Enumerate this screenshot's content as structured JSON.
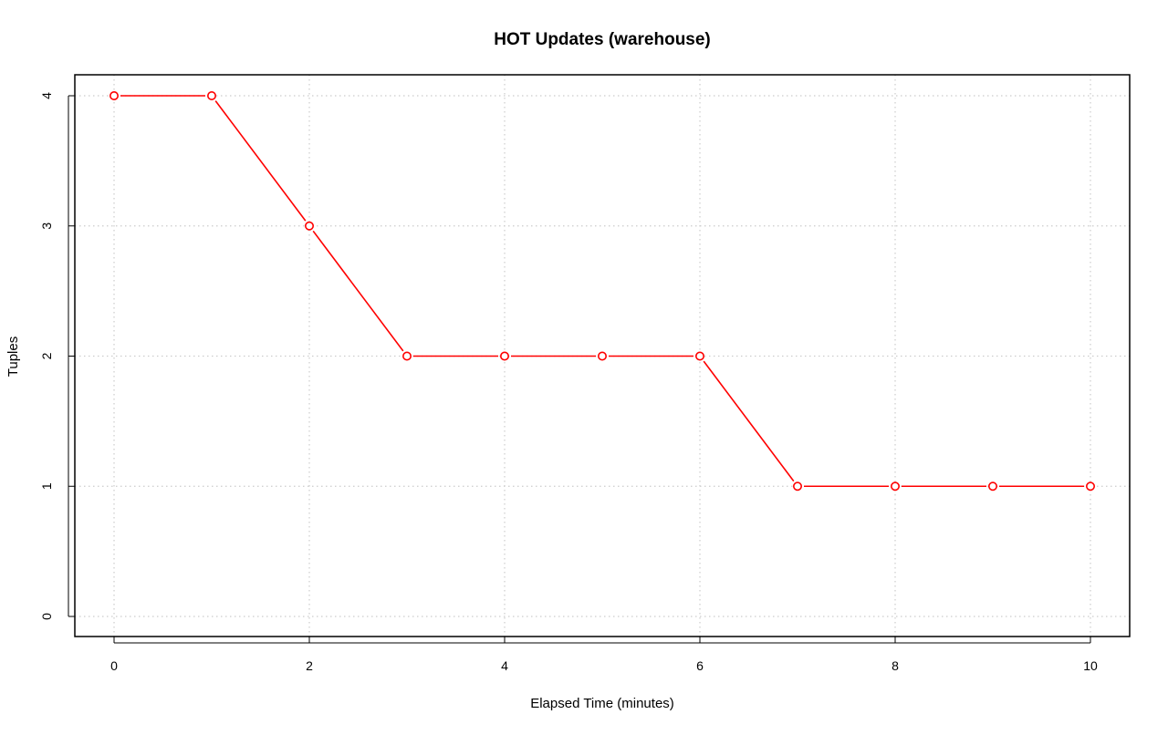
{
  "chart_data": {
    "type": "line",
    "title": "HOT Updates (warehouse)",
    "xlabel": "Elapsed Time (minutes)",
    "ylabel": "Tuples",
    "xlim": [
      0,
      10
    ],
    "ylim": [
      0,
      4
    ],
    "x_ticks": [
      "0",
      "2",
      "4",
      "6",
      "8",
      "10"
    ],
    "y_ticks": [
      "0",
      "1",
      "2",
      "3",
      "4"
    ],
    "grid": true,
    "legend": "none",
    "series": [
      {
        "color": "#ff0000",
        "marker": "open-circle",
        "x": [
          0,
          1,
          2,
          3,
          4,
          5,
          6,
          7,
          8,
          9,
          10
        ],
        "y": [
          4,
          4,
          3,
          2,
          2,
          2,
          2,
          1,
          1,
          1,
          1
        ]
      }
    ]
  }
}
